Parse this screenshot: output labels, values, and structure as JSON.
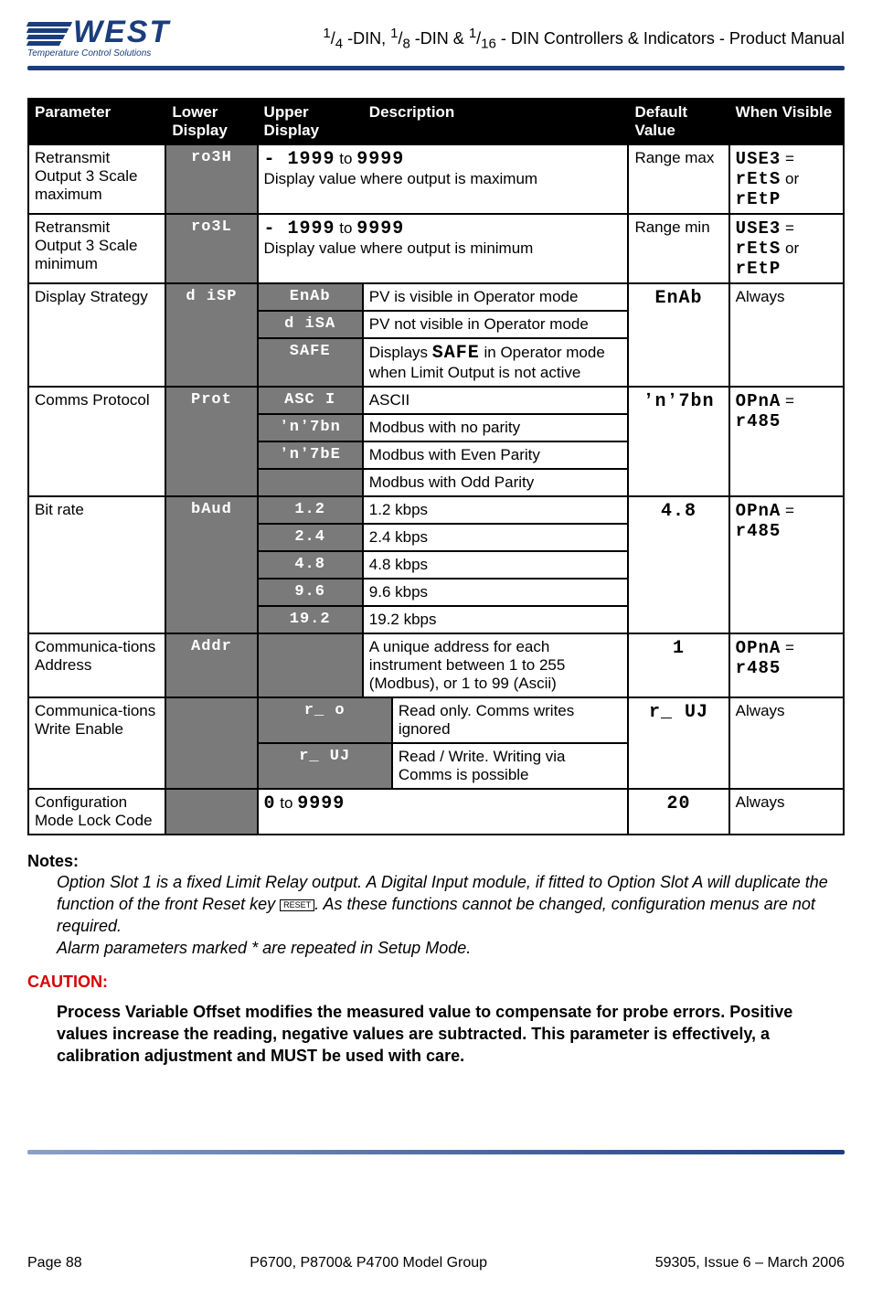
{
  "header": {
    "logo_text": "WEST",
    "tagline": "Temperature Control Solutions",
    "title_html": "<sup>1</sup>/<sub>4</sub> -DIN, <sup>1</sup>/<sub>8</sub> -DIN & <sup>1</sup>/<sub>16</sub> - DIN Controllers & Indicators - Product Manual"
  },
  "columns": {
    "parameter": "Parameter",
    "lower": "Lower Display",
    "upper": "Upper Display",
    "description": "Description",
    "default": "Default Value",
    "when": "When Visible"
  },
  "rows": {
    "ro3H": {
      "param": "Retransmit Output 3 Scale maximum",
      "lower": "ro3H",
      "range_html": "<span class='segtxt'>- 1999</span> to <span class='segtxt'>9999</span>",
      "desc": "Display value where output is maximum",
      "default": "Range max",
      "when_html": "<span class='segtxt'>USE3</span> = <span class='segtxt'>rEtS</span> or <span class='segtxt'>rEtP</span>"
    },
    "ro3L": {
      "param": "Retransmit Output 3 Scale minimum",
      "lower": "ro3L",
      "range_html": "<span class='segtxt'>- 1999</span> to <span class='segtxt'>9999</span>",
      "desc": "Display value where output is minimum",
      "default": "Range min",
      "when_html": "<span class='segtxt'>USE3</span> = <span class='segtxt'>rEtS</span> or <span class='segtxt'>rEtP</span>"
    },
    "disp": {
      "param": "Display Strategy",
      "lower": "d iSP",
      "opts": [
        {
          "upper": "EnAb",
          "desc": "PV is visible in Operator mode"
        },
        {
          "upper": "d iSA",
          "desc": "PV not visible in Operator mode"
        },
        {
          "upper": "SAFE",
          "desc_html": "Displays <span class='segtxt'>SAFE</span> in Operator mode when Limit Output is not active"
        }
      ],
      "default": "EnAb",
      "when": "Always"
    },
    "prot": {
      "param": "Comms Protocol",
      "lower": "Prot",
      "opts": [
        {
          "upper": "ASC I",
          "desc": "ASCII"
        },
        {
          "upper": "ʼnʼ7bn",
          "desc": "Modbus with no parity"
        },
        {
          "upper": "ʼnʼ7bE",
          "desc": "Modbus with Even Parity"
        },
        {
          "upper": "",
          "desc": "Modbus with Odd Parity"
        }
      ],
      "default": "ʼnʼ7bn",
      "when_html": "<span class='segtxt'>OPnA</span> = <span class='segtxt'>r485</span>"
    },
    "baud": {
      "param": "Bit rate",
      "lower": "bAud",
      "opts": [
        {
          "upper": "1.2",
          "desc": "1.2 kbps"
        },
        {
          "upper": "2.4",
          "desc": "2.4 kbps"
        },
        {
          "upper": "4.8",
          "desc": "4.8 kbps"
        },
        {
          "upper": "9.6",
          "desc": "9.6 kbps"
        },
        {
          "upper": "19.2",
          "desc": "19.2 kbps"
        }
      ],
      "default": "4.8",
      "when_html": "<span class='segtxt'>OPnA</span> = <span class='segtxt'>r485</span>"
    },
    "addr": {
      "param": "Communica-tions Address",
      "lower": "Addr",
      "desc": "A unique address for each instrument between 1 to 255 (Modbus), or 1 to 99 (Ascii)",
      "default": "1",
      "when_html": "<span class='segtxt'>OPnA</span> = <span class='segtxt'>r485</span>"
    },
    "cwe": {
      "param": "Communica-tions Write Enable",
      "opts": [
        {
          "upper": "r_ o",
          "desc": "Read only. Comms writes ignored"
        },
        {
          "upper": "r_ UJ",
          "desc": "Read / Write. Writing via Comms is possible"
        }
      ],
      "default": "r_ UJ",
      "when": "Always"
    },
    "lock": {
      "param": "Configuration Mode Lock Code",
      "range_html": "<span class='segtxt'>0</span> to <span class='segtxt'>9999</span>",
      "default": "20",
      "when": "Always"
    }
  },
  "notes": {
    "heading": "Notes:",
    "body_html": "Option Slot 1 is a fixed Limit Relay output. A Digital Input module, if fitted to Option Slot A will duplicate the function of the front Reset key <span class='reset-key'>RESET</span>. As these functions cannot be changed, configuration menus are not required.<br>Alarm parameters marked * are repeated in Setup Mode."
  },
  "caution": {
    "heading": "CAUTION:",
    "body": "Process Variable Offset modifies the measured value to compensate for probe errors. Positive values increase the reading, negative values are subtracted. This parameter is effectively, a calibration adjustment and MUST be used with care."
  },
  "footer": {
    "left": "Page 88",
    "center": "P6700, P8700& P4700 Model Group",
    "right": "59305, Issue 6 – March 2006"
  }
}
